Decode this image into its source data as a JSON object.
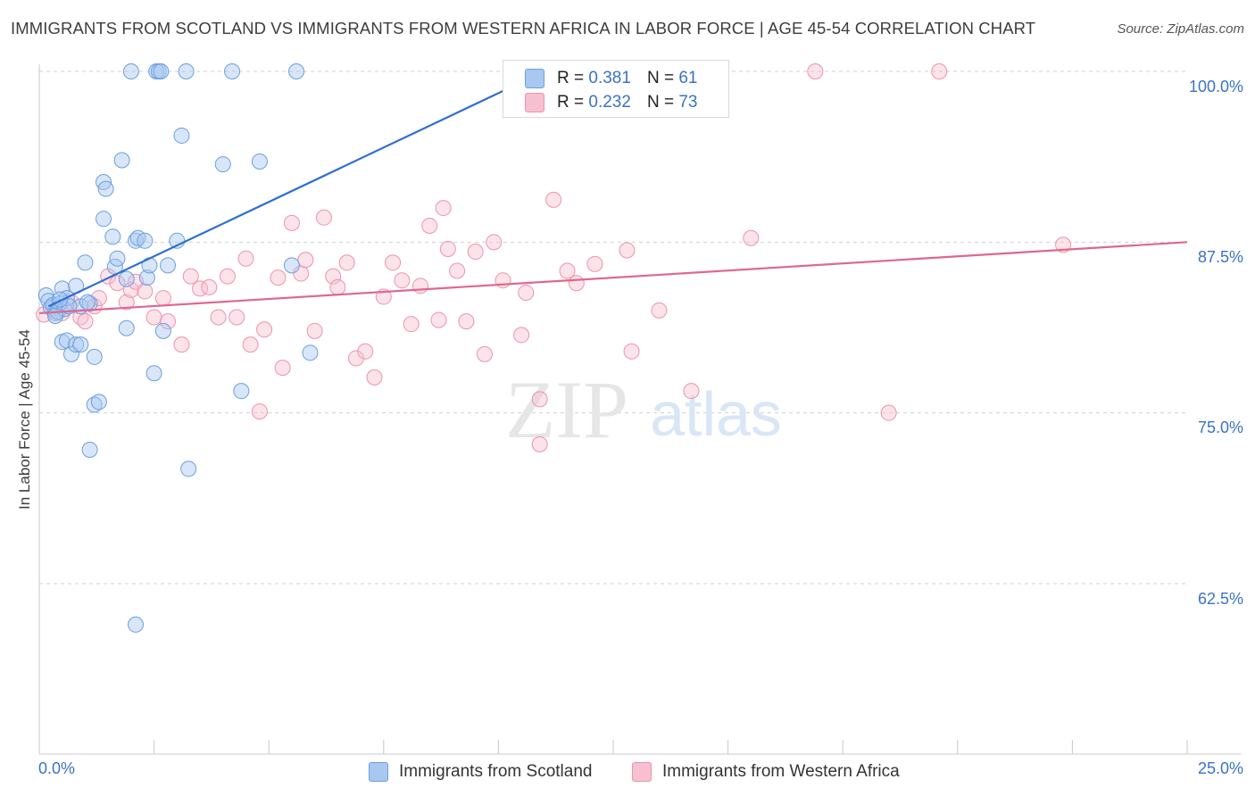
{
  "title": "IMMIGRANTS FROM SCOTLAND VS IMMIGRANTS FROM WESTERN AFRICA IN LABOR FORCE | AGE 45-54 CORRELATION CHART",
  "source": "Source: ZipAtlas.com",
  "watermark": {
    "zip": "ZIP",
    "atlas": "atlas"
  },
  "colors": {
    "scotland_fill": "#a9c8f0",
    "scotland_stroke": "#6b9fe0",
    "scotland_line": "#2f6fd0",
    "wafrica_fill": "#f6c0d0",
    "wafrica_stroke": "#ee92ae",
    "wafrica_line": "#e0668f",
    "axis_text": "#3a72c8",
    "grid": "#d0d0d0"
  },
  "legend": {
    "rows": [
      {
        "r_label": "R =",
        "r_value": "0.381",
        "n_label": "N =",
        "n_value": "61"
      },
      {
        "r_label": "R =",
        "r_value": "0.232",
        "n_label": "N =",
        "n_value": "73"
      }
    ]
  },
  "chart_data": {
    "type": "scatter",
    "title": "IMMIGRANTS FROM SCOTLAND VS IMMIGRANTS FROM WESTERN AFRICA IN LABOR FORCE | AGE 45-54 CORRELATION CHART",
    "xlabel": "",
    "ylabel": "In Labor Force | Age 45-54",
    "xlim": [
      0,
      25
    ],
    "ylim": [
      50,
      100.6
    ],
    "x_tick_labels": [
      "0.0%",
      "25.0%"
    ],
    "y_ticks": [
      62.5,
      75.0,
      87.5,
      100.0
    ],
    "y_tick_labels": [
      "62.5%",
      "75.0%",
      "87.5%",
      "100.0%"
    ],
    "grid": "horizontal dashed",
    "legend_position": "top-center",
    "series": [
      {
        "name": "Immigrants from Scotland",
        "r": 0.381,
        "n": 61,
        "trend": {
          "x": [
            0.2,
            11.0
          ],
          "y": [
            82.8,
            100.0
          ]
        },
        "points": [
          [
            0.15,
            83.6
          ],
          [
            0.2,
            83.2
          ],
          [
            0.25,
            82.7
          ],
          [
            0.3,
            82.9
          ],
          [
            0.35,
            82.3
          ],
          [
            0.4,
            82.4
          ],
          [
            0.45,
            83.0
          ],
          [
            0.5,
            84.1
          ],
          [
            0.55,
            82.6
          ],
          [
            0.6,
            83.4
          ],
          [
            0.5,
            80.2
          ],
          [
            0.6,
            80.3
          ],
          [
            0.7,
            79.3
          ],
          [
            0.8,
            80.0
          ],
          [
            0.8,
            84.3
          ],
          [
            0.9,
            82.8
          ],
          [
            1.0,
            86.0
          ],
          [
            1.1,
            83.0
          ],
          [
            0.9,
            80.0
          ],
          [
            1.2,
            79.1
          ],
          [
            1.2,
            75.6
          ],
          [
            1.3,
            75.8
          ],
          [
            1.1,
            72.3
          ],
          [
            1.4,
            89.2
          ],
          [
            1.4,
            91.9
          ],
          [
            1.45,
            91.4
          ],
          [
            1.6,
            87.9
          ],
          [
            1.65,
            85.7
          ],
          [
            1.7,
            86.3
          ],
          [
            1.8,
            93.5
          ],
          [
            1.9,
            81.2
          ],
          [
            1.9,
            84.8
          ],
          [
            2.0,
            100.0
          ],
          [
            2.1,
            87.6
          ],
          [
            2.15,
            87.8
          ],
          [
            2.3,
            87.6
          ],
          [
            2.35,
            84.9
          ],
          [
            2.4,
            85.8
          ],
          [
            2.5,
            77.9
          ],
          [
            2.55,
            100.0
          ],
          [
            2.6,
            100.0
          ],
          [
            2.65,
            100.0
          ],
          [
            2.7,
            81.0
          ],
          [
            2.8,
            85.8
          ],
          [
            3.0,
            87.6
          ],
          [
            3.1,
            95.3
          ],
          [
            3.2,
            100.0
          ],
          [
            3.25,
            70.9
          ],
          [
            4.0,
            93.2
          ],
          [
            4.2,
            100.0
          ],
          [
            4.4,
            76.6
          ],
          [
            4.8,
            93.4
          ],
          [
            5.5,
            85.8
          ],
          [
            5.6,
            100.0
          ],
          [
            5.9,
            79.4
          ],
          [
            2.1,
            59.5
          ],
          [
            0.35,
            82.1
          ],
          [
            0.65,
            82.8
          ],
          [
            1.05,
            83.1
          ],
          [
            0.45,
            83.3
          ],
          [
            11.9,
            100.0
          ]
        ]
      },
      {
        "name": "Immigrants from Western Africa",
        "r": 0.232,
        "n": 73,
        "trend": {
          "x": [
            0.0,
            25.0
          ],
          "y": [
            82.3,
            87.5
          ]
        },
        "points": [
          [
            0.1,
            82.2
          ],
          [
            0.3,
            82.6
          ],
          [
            0.5,
            82.3
          ],
          [
            0.7,
            83.1
          ],
          [
            0.9,
            82.0
          ],
          [
            1.0,
            81.7
          ],
          [
            1.2,
            82.8
          ],
          [
            1.3,
            83.4
          ],
          [
            1.5,
            85.0
          ],
          [
            1.7,
            84.5
          ],
          [
            1.9,
            83.1
          ],
          [
            2.0,
            84.0
          ],
          [
            2.1,
            84.6
          ],
          [
            2.3,
            83.9
          ],
          [
            2.5,
            82.0
          ],
          [
            2.7,
            83.4
          ],
          [
            2.8,
            81.7
          ],
          [
            3.1,
            80.0
          ],
          [
            3.3,
            85.0
          ],
          [
            3.5,
            84.1
          ],
          [
            3.7,
            84.2
          ],
          [
            3.9,
            82.0
          ],
          [
            4.1,
            85.0
          ],
          [
            4.3,
            82.0
          ],
          [
            4.5,
            86.3
          ],
          [
            4.6,
            80.0
          ],
          [
            4.8,
            75.1
          ],
          [
            4.9,
            81.1
          ],
          [
            5.2,
            84.9
          ],
          [
            5.3,
            78.3
          ],
          [
            5.5,
            88.9
          ],
          [
            5.7,
            85.2
          ],
          [
            5.8,
            86.2
          ],
          [
            6.0,
            81.0
          ],
          [
            6.2,
            89.3
          ],
          [
            6.4,
            85.0
          ],
          [
            6.5,
            84.2
          ],
          [
            6.7,
            86.0
          ],
          [
            6.9,
            79.0
          ],
          [
            7.1,
            79.5
          ],
          [
            7.3,
            77.6
          ],
          [
            7.5,
            83.5
          ],
          [
            7.7,
            86.0
          ],
          [
            7.9,
            84.7
          ],
          [
            8.1,
            81.5
          ],
          [
            8.3,
            84.3
          ],
          [
            8.5,
            88.7
          ],
          [
            8.7,
            81.8
          ],
          [
            8.8,
            90.0
          ],
          [
            8.9,
            87.0
          ],
          [
            9.1,
            85.4
          ],
          [
            9.3,
            81.7
          ],
          [
            9.5,
            86.8
          ],
          [
            9.7,
            79.3
          ],
          [
            9.9,
            87.5
          ],
          [
            10.1,
            84.7
          ],
          [
            10.5,
            80.7
          ],
          [
            10.6,
            83.8
          ],
          [
            10.9,
            76.0
          ],
          [
            10.9,
            72.7
          ],
          [
            11.2,
            90.6
          ],
          [
            11.5,
            85.4
          ],
          [
            11.7,
            84.5
          ],
          [
            12.1,
            85.9
          ],
          [
            12.8,
            86.9
          ],
          [
            12.9,
            79.5
          ],
          [
            13.5,
            82.5
          ],
          [
            14.2,
            76.6
          ],
          [
            15.5,
            87.8
          ],
          [
            16.9,
            100.0
          ],
          [
            18.5,
            75.0
          ],
          [
            19.6,
            100.0
          ],
          [
            22.3,
            87.3
          ]
        ]
      }
    ]
  },
  "bottom_legend": {
    "items": [
      {
        "label": "Immigrants from Scotland"
      },
      {
        "label": "Immigrants from Western Africa"
      }
    ]
  }
}
